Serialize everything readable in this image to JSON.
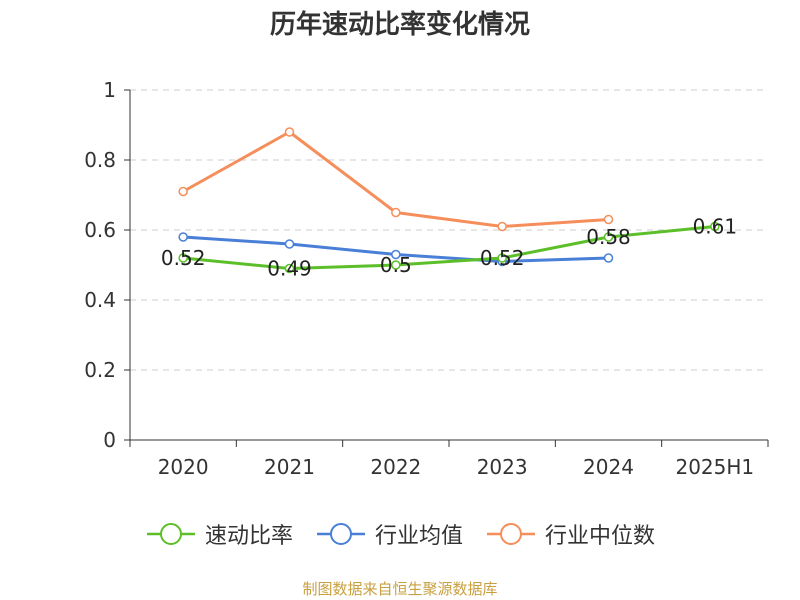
{
  "colors": {
    "quick_ratio": "#5cbf2a",
    "industry_avg": "#4a7fd8",
    "industry_median": "#f58e5a",
    "grid": "#cccccc",
    "axis": "#333333",
    "source": "#c8a040"
  },
  "source_text": "制图数据来自恒生聚源数据库",
  "chart_data": {
    "type": "line",
    "title": "历年速动比率变化情况",
    "categories": [
      "2020",
      "2021",
      "2022",
      "2023",
      "2024",
      "2025H1"
    ],
    "ylim": [
      0,
      1
    ],
    "yticks": [
      "0",
      "0.2",
      "0.4",
      "0.6",
      "0.8",
      "1"
    ],
    "ytick_values": [
      0,
      0.2,
      0.4,
      0.6,
      0.8,
      1
    ],
    "grid": true,
    "legend_position": "bottom",
    "series": [
      {
        "name": "速动比率",
        "key": "quick_ratio",
        "values": [
          0.52,
          0.49,
          0.5,
          0.52,
          0.58,
          0.61
        ],
        "labels": [
          "0.52",
          "0.49",
          "0.5",
          "0.52",
          "0.58",
          "0.61"
        ]
      },
      {
        "name": "行业均值",
        "key": "industry_avg",
        "values": [
          0.58,
          0.56,
          0.53,
          0.51,
          0.52,
          null
        ]
      },
      {
        "name": "行业中位数",
        "key": "industry_median",
        "values": [
          0.71,
          0.88,
          0.65,
          0.61,
          0.63,
          null
        ]
      }
    ]
  }
}
